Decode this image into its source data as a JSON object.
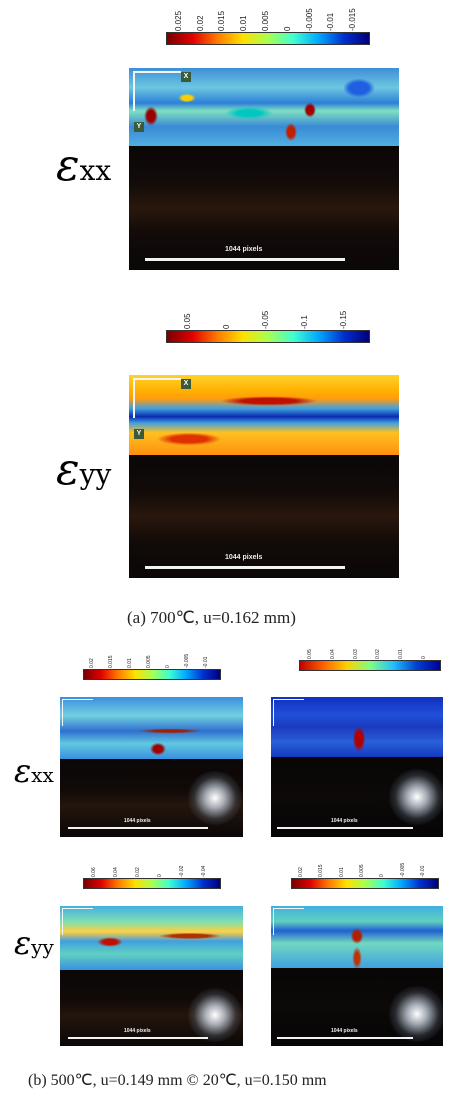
{
  "section_a": {
    "exx": {
      "label_symbol": "ε",
      "label_sub": "xx",
      "ticks": [
        "0.025",
        "0.02",
        "0.015",
        "0.01",
        "0.005",
        "0",
        "-0.005",
        "-0.01",
        "-0.015"
      ],
      "scale": "1044 pixels",
      "axis_x": "X",
      "axis_y": "Y"
    },
    "eyy": {
      "label_symbol": "ε",
      "label_sub": "yy",
      "ticks": [
        "0.05",
        "0",
        "-0.05",
        "-0.1",
        "-0.15"
      ],
      "scale": "1044 pixels",
      "axis_x": "X",
      "axis_y": "Y"
    },
    "caption": "(a)  700℃,  u=0.162  mm)"
  },
  "section_b": {
    "exx_label_symbol": "ε",
    "exx_label_sub": "xx",
    "eyy_label_symbol": "ε",
    "eyy_label_sub": "yy",
    "exx_left_ticks": [
      "0.02",
      "0.015",
      "0.01",
      "0.005",
      "0",
      "-0.005",
      "-0.01"
    ],
    "exx_right_ticks": [
      "0.05",
      "0.04",
      "0.03",
      "0.02",
      "0.01",
      "0"
    ],
    "eyy_left_ticks": [
      "0.06",
      "0.04",
      "0.02",
      "0",
      "-0.02",
      "-0.04"
    ],
    "eyy_right_ticks": [
      "0.02",
      "0.015",
      "0.01",
      "0.005",
      "0",
      "-0.005",
      "-0.01"
    ],
    "scale": "1044 pixels",
    "caption": "(b)  500℃,  u=0.149  mm  ©  20℃,  u=0.150  mm"
  },
  "colors": {
    "colormap": [
      "#7a0000",
      "#e00000",
      "#ff7a00",
      "#ffe000",
      "#a8ff50",
      "#40ffd0",
      "#00a8ff",
      "#0030d0",
      "#00007a"
    ],
    "background": "#ffffff"
  }
}
